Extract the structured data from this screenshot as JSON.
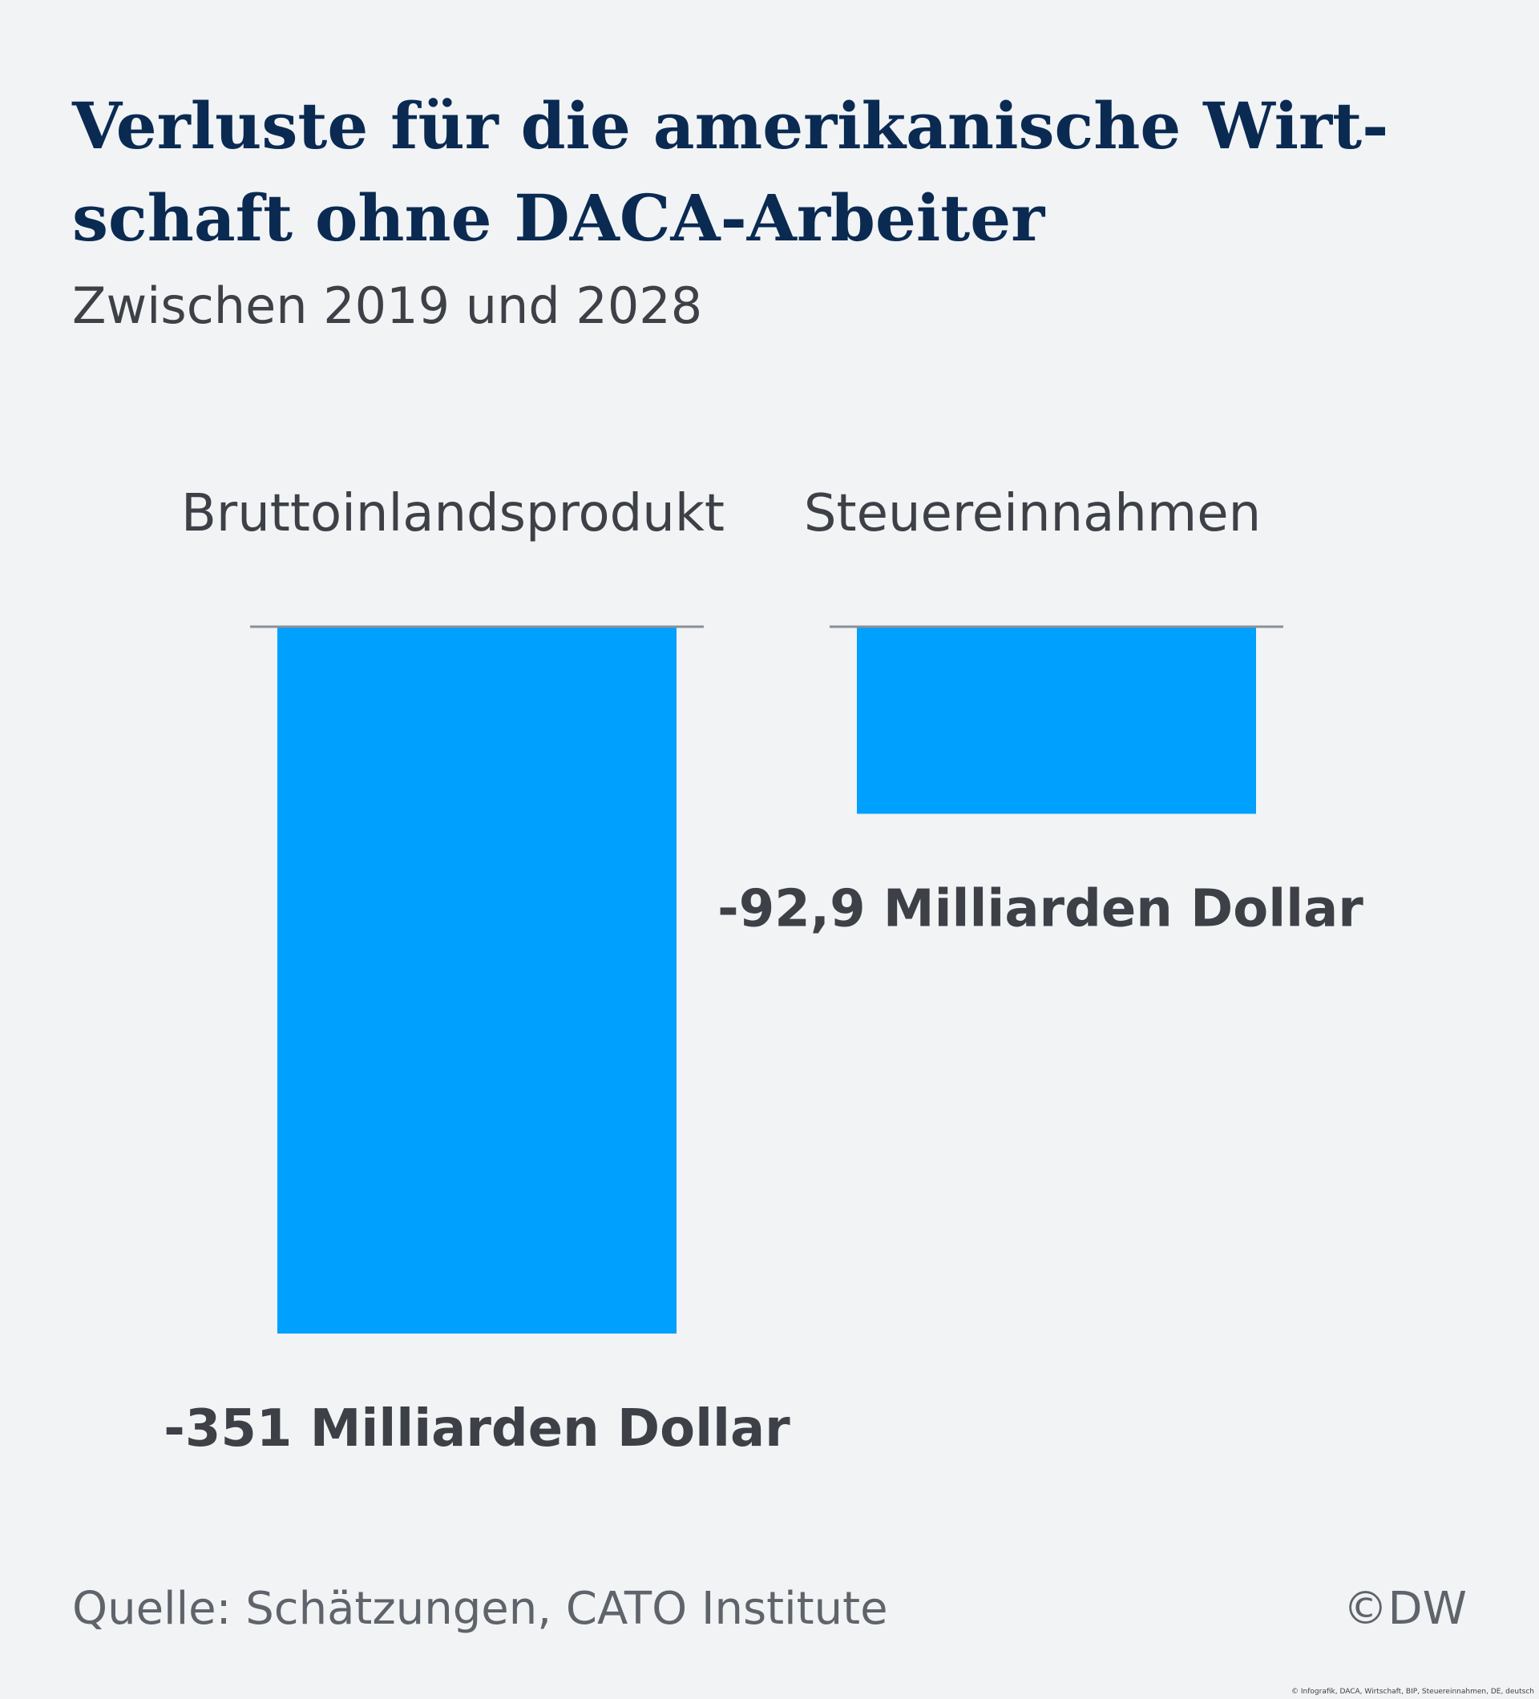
{
  "title_line1": "Verluste für die amerikanische Wirt-",
  "title_line2": "schaft ohne DACA-Arbeiter",
  "subtitle": "Zwischen 2019 und 2028",
  "source": "Quelle: Schätzungen, CATO Institute",
  "logo": "©DW",
  "credit": "© Infografik, DACA, Wirtschaft, BIP, Steuereinnahmen, DE, deutsch",
  "colors": {
    "bar": "#00a0ff",
    "baseline": "#8a9099",
    "text": "#3d4147",
    "title": "#0a2a52"
  },
  "chart_data": {
    "type": "bar",
    "title": "Verluste für die amerikanische Wirtschaft ohne DACA-Arbeiter",
    "subtitle": "Zwischen 2019 und 2028",
    "categories": [
      "Bruttoinlandsprodukt",
      "Steuereinnahmen"
    ],
    "values": [
      -351,
      -92.9
    ],
    "value_labels": [
      "-351 Milliarden Dollar",
      "-92,9 Milliarden Dollar"
    ],
    "ylim": [
      -351,
      0
    ],
    "grid": false,
    "legend": "none"
  }
}
